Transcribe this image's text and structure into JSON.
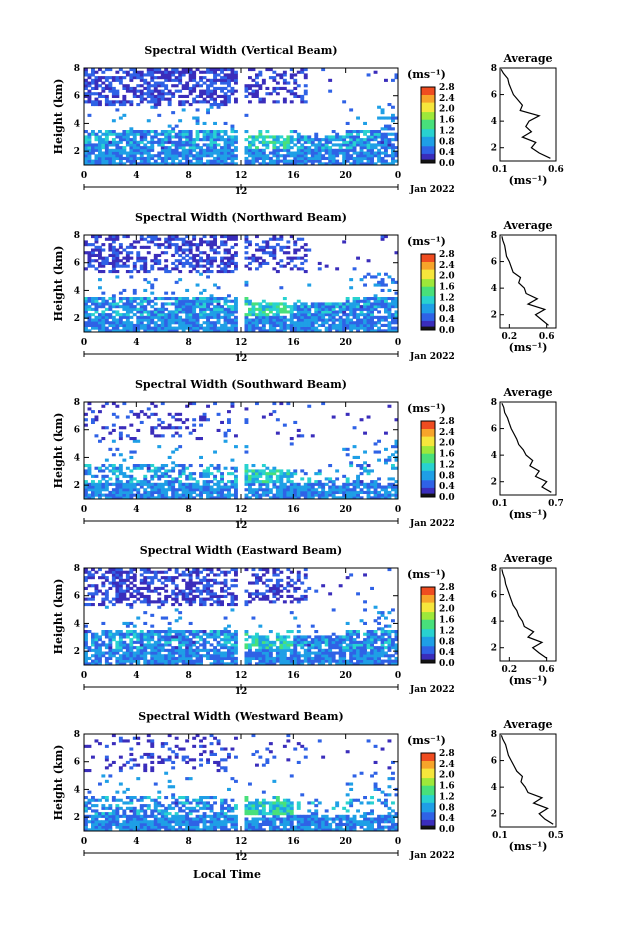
{
  "figure": {
    "xlabel": "Local Time",
    "date_label": "Jan 2022",
    "colorbar_ticks": [
      "0.0",
      "0.4",
      "0.8",
      "1.2",
      "1.6",
      "2.0",
      "2.4",
      "2.8"
    ],
    "colorbar_unit": "(ms⁻¹)",
    "colorbar_colors": [
      "#141414",
      "#3a2dbb",
      "#2f62e6",
      "#1f9fe6",
      "#28d2d0",
      "#48e07b",
      "#9ee83a",
      "#f6e63c",
      "#f7a42a",
      "#ef4c20"
    ],
    "average_title": "Average",
    "average_xlabel": "(ms⁻¹)",
    "ylabel": "Height (km)"
  },
  "chart_data": [
    {
      "type": "heatmap",
      "title": "Spectral Width (Vertical Beam)",
      "xlabel": "",
      "ylabel": "Height (km)",
      "xlim": [
        0,
        24
      ],
      "ylim": [
        1,
        8
      ],
      "xticks": [
        "0",
        "4",
        "8",
        "12",
        "16",
        "20",
        "0"
      ],
      "xticks_secondary": [
        "12"
      ],
      "yticks": [
        "2",
        "4",
        "6",
        "8"
      ],
      "colorbar_range": [
        0,
        2.8
      ],
      "average_profile": {
        "title": "Average",
        "xlabel": "(ms⁻¹)",
        "xticks": [
          "0.1",
          "0.6"
        ],
        "xlim": [
          0.1,
          0.6
        ],
        "ylim": [
          1,
          8
        ],
        "yticks": [
          "2",
          "4",
          "6",
          "8"
        ],
        "height": [
          1.2,
          1.6,
          2.0,
          2.4,
          2.8,
          3.2,
          3.6,
          4.0,
          4.4,
          4.8,
          5.2,
          5.6,
          6.0,
          6.4,
          6.8,
          7.2,
          7.6,
          7.9
        ],
        "value": [
          0.55,
          0.45,
          0.38,
          0.42,
          0.3,
          0.38,
          0.33,
          0.36,
          0.45,
          0.28,
          0.3,
          0.26,
          0.22,
          0.2,
          0.18,
          0.17,
          0.13,
          0.11
        ]
      }
    },
    {
      "type": "heatmap",
      "title": "Spectral Width (Northward Beam)",
      "xlabel": "",
      "ylabel": "Height (km)",
      "xlim": [
        0,
        24
      ],
      "ylim": [
        1,
        8
      ],
      "xticks": [
        "0",
        "4",
        "8",
        "12",
        "16",
        "20",
        "0"
      ],
      "xticks_secondary": [
        "12"
      ],
      "yticks": [
        "2",
        "4",
        "6",
        "8"
      ],
      "colorbar_range": [
        0,
        2.8
      ],
      "average_profile": {
        "title": "Average",
        "xlabel": "(ms⁻¹)",
        "xticks": [
          "0.2",
          "0.6"
        ],
        "xlim": [
          0.1,
          0.7
        ],
        "ylim": [
          1,
          8
        ],
        "yticks": [
          "2",
          "4",
          "6",
          "8"
        ],
        "height": [
          1.2,
          1.6,
          2.0,
          2.4,
          2.8,
          3.2,
          3.6,
          4.0,
          4.4,
          4.8,
          5.2,
          5.6,
          6.0,
          6.4,
          6.8,
          7.2,
          7.6,
          7.9
        ],
        "value": [
          0.62,
          0.55,
          0.48,
          0.58,
          0.4,
          0.5,
          0.38,
          0.36,
          0.3,
          0.32,
          0.24,
          0.22,
          0.2,
          0.17,
          0.16,
          0.15,
          0.13,
          0.12
        ]
      }
    },
    {
      "type": "heatmap",
      "title": "Spectral Width (Southward Beam)",
      "xlabel": "",
      "ylabel": "Height (km)",
      "xlim": [
        0,
        24
      ],
      "ylim": [
        1,
        8
      ],
      "xticks": [
        "0",
        "4",
        "8",
        "12",
        "16",
        "20",
        "0"
      ],
      "xticks_secondary": [
        "12"
      ],
      "yticks": [
        "2",
        "4",
        "6",
        "8"
      ],
      "colorbar_range": [
        0,
        2.8
      ],
      "average_profile": {
        "title": "Average",
        "xlabel": "(ms⁻¹)",
        "xticks": [
          "0.1",
          "0.7"
        ],
        "xlim": [
          0.1,
          0.7
        ],
        "ylim": [
          1,
          8
        ],
        "yticks": [
          "2",
          "4",
          "6",
          "8"
        ],
        "height": [
          1.2,
          1.6,
          2.0,
          2.4,
          2.8,
          3.2,
          3.6,
          4.0,
          4.4,
          4.8,
          5.2,
          5.6,
          6.0,
          6.4,
          6.8,
          7.2,
          7.6,
          7.9
        ],
        "value": [
          0.65,
          0.55,
          0.6,
          0.48,
          0.52,
          0.42,
          0.45,
          0.38,
          0.35,
          0.3,
          0.28,
          0.25,
          0.22,
          0.2,
          0.18,
          0.15,
          0.14,
          0.12
        ]
      }
    },
    {
      "type": "heatmap",
      "title": "Spectral Width (Eastward Beam)",
      "xlabel": "",
      "ylabel": "Height (km)",
      "xlim": [
        0,
        24
      ],
      "ylim": [
        1,
        8
      ],
      "xticks": [
        "0",
        "4",
        "8",
        "12",
        "16",
        "20",
        "0"
      ],
      "xticks_secondary": [
        "12"
      ],
      "yticks": [
        "2",
        "4",
        "6",
        "8"
      ],
      "colorbar_range": [
        0,
        2.8
      ],
      "average_profile": {
        "title": "Average",
        "xlabel": "(ms⁻¹)",
        "xticks": [
          "0.2",
          "0.6"
        ],
        "xlim": [
          0.1,
          0.7
        ],
        "ylim": [
          1,
          8
        ],
        "yticks": [
          "2",
          "4",
          "6",
          "8"
        ],
        "height": [
          1.2,
          1.6,
          2.0,
          2.4,
          2.8,
          3.2,
          3.6,
          4.0,
          4.4,
          4.8,
          5.2,
          5.6,
          6.0,
          6.4,
          6.8,
          7.2,
          7.6,
          7.9
        ],
        "value": [
          0.6,
          0.52,
          0.45,
          0.55,
          0.4,
          0.46,
          0.36,
          0.34,
          0.3,
          0.28,
          0.24,
          0.22,
          0.2,
          0.18,
          0.16,
          0.15,
          0.13,
          0.12
        ]
      }
    },
    {
      "type": "heatmap",
      "title": "Spectral Width (Westward Beam)",
      "xlabel": "Local Time",
      "ylabel": "Height (km)",
      "xlim": [
        0,
        24
      ],
      "ylim": [
        1,
        8
      ],
      "xticks": [
        "0",
        "4",
        "8",
        "12",
        "16",
        "20",
        "0"
      ],
      "xticks_secondary": [
        "12"
      ],
      "yticks": [
        "2",
        "4",
        "6",
        "8"
      ],
      "colorbar_range": [
        0,
        2.8
      ],
      "average_profile": {
        "title": "Average",
        "xlabel": "(ms⁻¹)",
        "xticks": [
          "0.1",
          "0.5"
        ],
        "xlim": [
          0.1,
          0.5
        ],
        "ylim": [
          1,
          8
        ],
        "yticks": [
          "2",
          "4",
          "6",
          "8"
        ],
        "height": [
          1.2,
          1.6,
          2.0,
          2.4,
          2.8,
          3.2,
          3.6,
          4.0,
          4.4,
          4.8,
          5.2,
          5.6,
          6.0,
          6.4,
          6.8,
          7.2,
          7.6,
          7.9
        ],
        "value": [
          0.48,
          0.42,
          0.38,
          0.44,
          0.34,
          0.4,
          0.3,
          0.28,
          0.25,
          0.26,
          0.22,
          0.2,
          0.18,
          0.16,
          0.15,
          0.14,
          0.12,
          0.11
        ]
      }
    }
  ]
}
